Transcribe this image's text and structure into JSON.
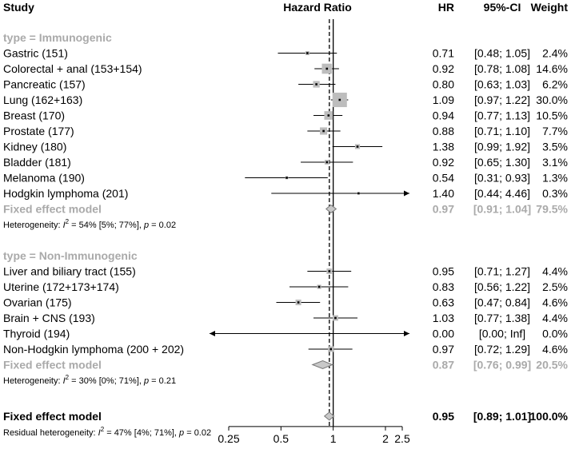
{
  "headers": {
    "study": "Study",
    "hazard_ratio": "Hazard Ratio",
    "hr": "HR",
    "ci": "95%-CI",
    "weight": "Weight"
  },
  "colors": {
    "text": "#000000",
    "muted": "#aaaaaa",
    "box": "#bdbdbd",
    "diamond_fill": "#c8c8c8",
    "diamond_stroke": "#777777"
  },
  "chart_data": {
    "type": "forest",
    "x_scale": "log",
    "xlim": [
      0.25,
      2.5
    ],
    "x_ticks": [
      0.25,
      0.5,
      1,
      2,
      2.5
    ],
    "x_tick_labels": [
      "0.25",
      "0.5",
      "1",
      "2",
      "2.5"
    ],
    "reference_line": 1,
    "overall_dashed_line": 0.95,
    "groups": [
      {
        "label": "type = Immunogenic",
        "studies": [
          {
            "name": "Gastric (151)",
            "hr": 0.71,
            "lower": 0.48,
            "upper": 1.05,
            "hr_text": "0.71",
            "ci_text": "[0.48; 1.05]",
            "weight_text": "2.4%",
            "weight": 2.4
          },
          {
            "name": "Colorectal + anal (153+154)",
            "hr": 0.92,
            "lower": 0.78,
            "upper": 1.08,
            "hr_text": "0.92",
            "ci_text": "[0.78; 1.08]",
            "weight_text": "14.6%",
            "weight": 14.6
          },
          {
            "name": "Pancreatic (157)",
            "hr": 0.8,
            "lower": 0.63,
            "upper": 1.03,
            "hr_text": "0.80",
            "ci_text": "[0.63; 1.03]",
            "weight_text": "6.2%",
            "weight": 6.2
          },
          {
            "name": "Lung (162+163)",
            "hr": 1.09,
            "lower": 0.97,
            "upper": 1.22,
            "hr_text": "1.09",
            "ci_text": "[0.97; 1.22]",
            "weight_text": "30.0%",
            "weight": 30.0
          },
          {
            "name": "Breast (170)",
            "hr": 0.94,
            "lower": 0.77,
            "upper": 1.13,
            "hr_text": "0.94",
            "ci_text": "[0.77; 1.13]",
            "weight_text": "10.5%",
            "weight": 10.5
          },
          {
            "name": "Prostate (177)",
            "hr": 0.88,
            "lower": 0.71,
            "upper": 1.1,
            "hr_text": "0.88",
            "ci_text": "[0.71; 1.10]",
            "weight_text": "7.7%",
            "weight": 7.7
          },
          {
            "name": "Kidney (180)",
            "hr": 1.38,
            "lower": 0.99,
            "upper": 1.92,
            "hr_text": "1.38",
            "ci_text": "[0.99; 1.92]",
            "weight_text": "3.5%",
            "weight": 3.5
          },
          {
            "name": "Bladder (181)",
            "hr": 0.92,
            "lower": 0.65,
            "upper": 1.3,
            "hr_text": "0.92",
            "ci_text": "[0.65; 1.30]",
            "weight_text": "3.1%",
            "weight": 3.1
          },
          {
            "name": "Melanoma (190)",
            "hr": 0.54,
            "lower": 0.31,
            "upper": 0.93,
            "hr_text": "0.54",
            "ci_text": "[0.31; 0.93]",
            "weight_text": "1.3%",
            "weight": 1.3
          },
          {
            "name": "Hodgkin lymphoma (201)",
            "hr": 1.4,
            "lower": 0.44,
            "upper": 4.46,
            "hr_text": "1.40",
            "ci_text": "[0.44; 4.46]",
            "weight_text": "0.3%",
            "weight": 0.3
          }
        ],
        "pooled": {
          "label": "Fixed effect model",
          "hr": 0.97,
          "lower": 0.91,
          "upper": 1.04,
          "hr_text": "0.97",
          "ci_text": "[0.91; 1.04]",
          "weight_text": "79.5%"
        },
        "heterogeneity": {
          "prefix": "Heterogeneity: ",
          "i2_sym": "I",
          "i2_sup": "2",
          "rest": " = 54% [5%; 77%], ",
          "p_sym": "p",
          "p_rest": " = 0.02"
        }
      },
      {
        "label": "type = Non-Immunogenic",
        "studies": [
          {
            "name": "Liver and biliary tract (155)",
            "hr": 0.95,
            "lower": 0.71,
            "upper": 1.27,
            "hr_text": "0.95",
            "ci_text": "[0.71; 1.27]",
            "weight_text": "4.4%",
            "weight": 4.4
          },
          {
            "name": "Uterine (172+173+174)",
            "hr": 0.83,
            "lower": 0.56,
            "upper": 1.22,
            "hr_text": "0.83",
            "ci_text": "[0.56; 1.22]",
            "weight_text": "2.5%",
            "weight": 2.5
          },
          {
            "name": "Ovarian (175)",
            "hr": 0.63,
            "lower": 0.47,
            "upper": 0.84,
            "hr_text": "0.63",
            "ci_text": "[0.47; 0.84]",
            "weight_text": "4.6%",
            "weight": 4.6
          },
          {
            "name": "Brain + CNS (193)",
            "hr": 1.03,
            "lower": 0.77,
            "upper": 1.38,
            "hr_text": "1.03",
            "ci_text": "[0.77; 1.38]",
            "weight_text": "4.4%",
            "weight": 4.4
          },
          {
            "name": "Thyroid (194)",
            "hr": 0.0,
            "lower": 0.0,
            "upper": null,
            "hr_text": "0.00",
            "ci_text": "[0.00;  Inf]",
            "weight_text": "0.0%",
            "weight": 0.0
          },
          {
            "name": "Non-Hodgkin lymphoma (200 + 202)",
            "hr": 0.97,
            "lower": 0.72,
            "upper": 1.29,
            "hr_text": "0.97",
            "ci_text": "[0.72; 1.29]",
            "weight_text": "4.6%",
            "weight": 4.6
          }
        ],
        "pooled": {
          "label": "Fixed effect model",
          "hr": 0.87,
          "lower": 0.76,
          "upper": 0.99,
          "hr_text": "0.87",
          "ci_text": "[0.76; 0.99]",
          "weight_text": "20.5%"
        },
        "heterogeneity": {
          "prefix": "Heterogeneity: ",
          "i2_sym": "I",
          "i2_sup": "2",
          "rest": " = 30% [0%; 71%], ",
          "p_sym": "p",
          "p_rest": " = 0.21"
        }
      }
    ],
    "overall": {
      "label": "Fixed effect model",
      "hr": 0.95,
      "lower": 0.89,
      "upper": 1.01,
      "hr_text": "0.95",
      "ci_text": "[0.89; 1.01]",
      "weight_text": "100.0%"
    },
    "residual_heterogeneity": {
      "prefix": "Residual heterogeneity: ",
      "i2_sym": "I",
      "i2_sup": "2",
      "rest": " = 47% [4%; 71%], ",
      "p_sym": "p",
      "p_rest": " = 0.02"
    }
  }
}
